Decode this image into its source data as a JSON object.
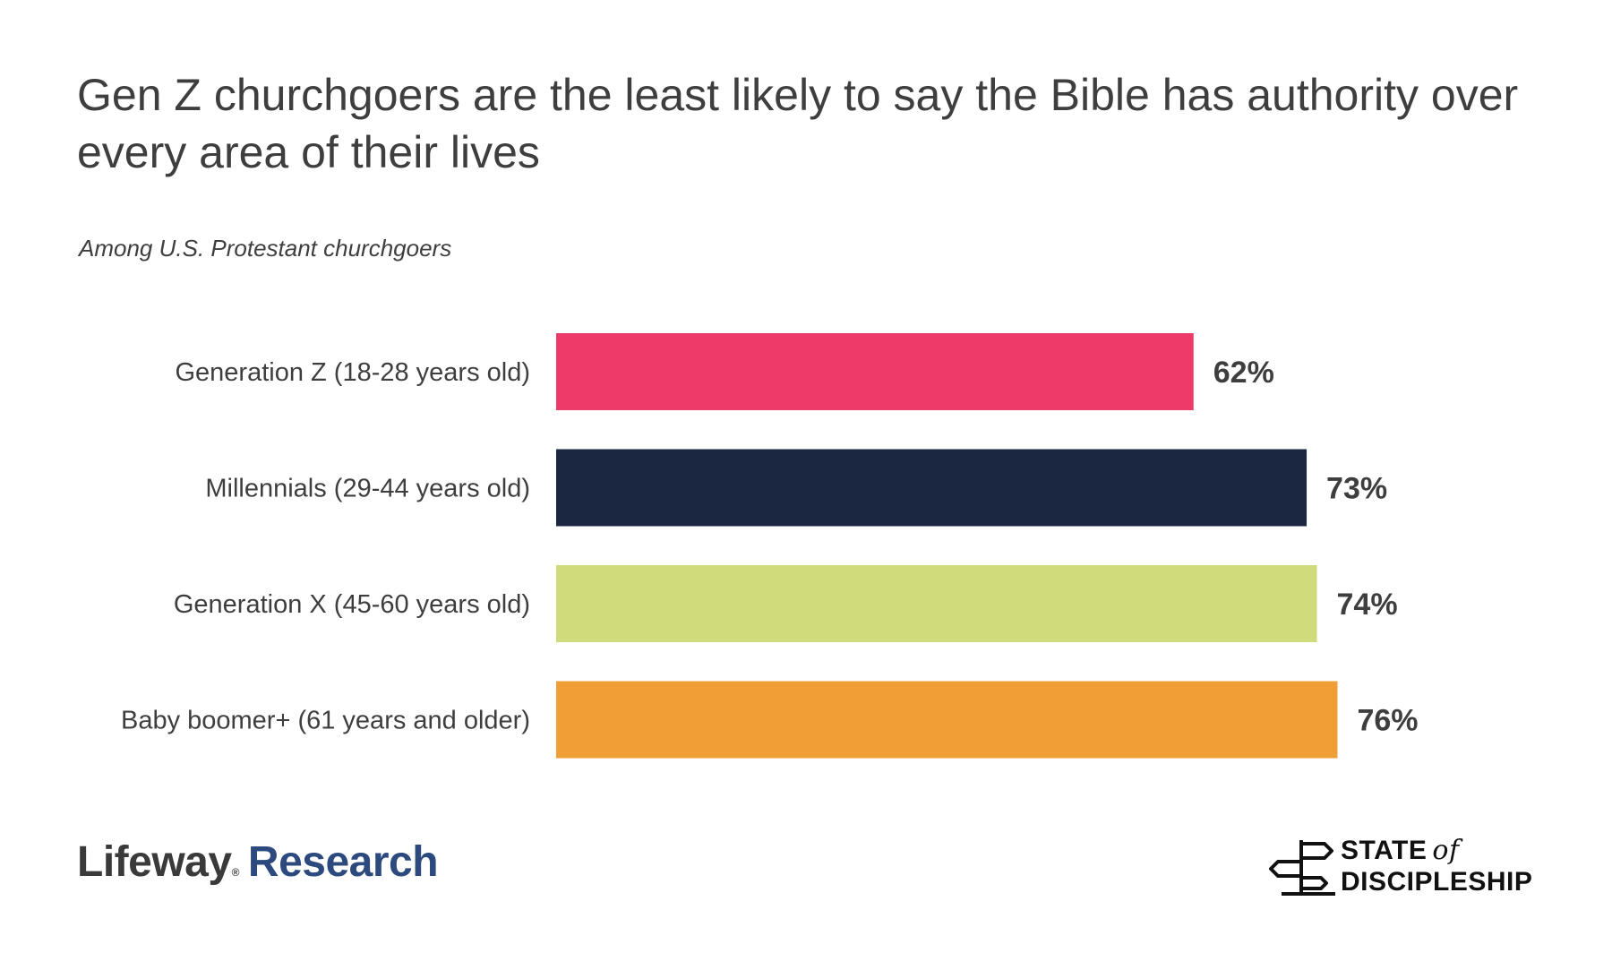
{
  "chart_data": {
    "type": "bar",
    "orientation": "horizontal",
    "title": "Gen Z churchgoers are the least likely to say the Bible has authority over every area of their lives",
    "subtitle": "Among U.S. Protestant churchgoers",
    "categories": [
      "Generation Z (18-28 years old)",
      "Millennials (29-44 years old)",
      "Generation X (45-60 years old)",
      "Baby boomer+ (61 years and older)"
    ],
    "values": [
      62,
      73,
      74,
      76
    ],
    "value_labels": [
      "62%",
      "73%",
      "74%",
      "76%"
    ],
    "colors": [
      "#ee3a69",
      "#1b2640",
      "#d0dc7c",
      "#f09e36"
    ],
    "xlim": [
      0,
      100
    ],
    "grid": false,
    "legend": "none"
  },
  "logos": {
    "left_brand": "Lifeway",
    "left_reg": "®",
    "left_research": "Research",
    "right_line1": "STATE",
    "right_of": "of",
    "right_line2": "DISCIPLESHIP"
  }
}
